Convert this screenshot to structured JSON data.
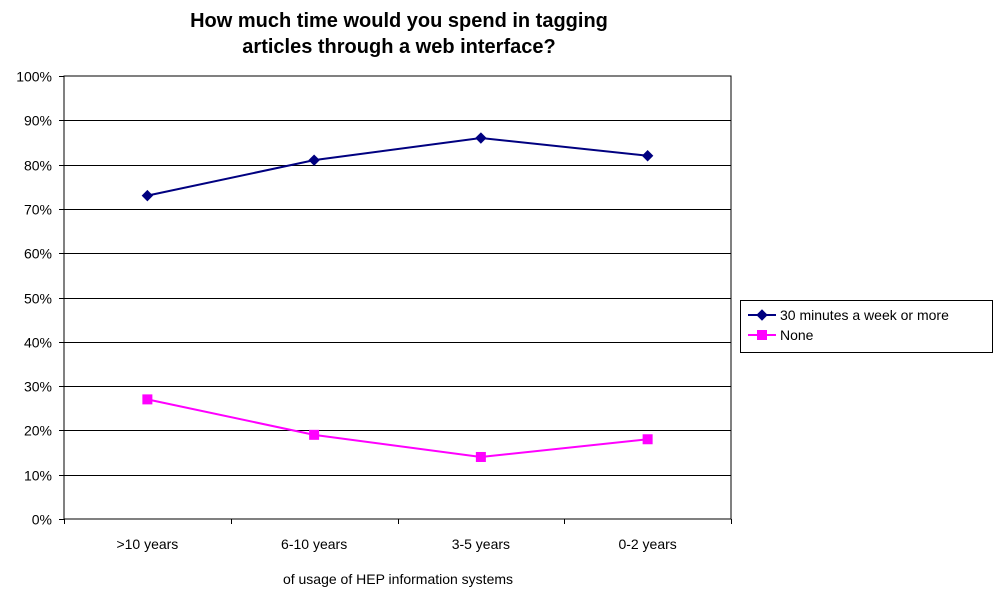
{
  "chart_data": {
    "type": "line",
    "title_lines": [
      "How much time would you spend in tagging",
      "articles through a web interface?"
    ],
    "xlabel": "of usage of HEP information systems",
    "ylabel": "",
    "categories": [
      ">10 years",
      "6-10 years",
      "3-5 years",
      "0-2 years"
    ],
    "ylim": [
      0,
      100
    ],
    "y_ticks": [
      "0%",
      "10%",
      "20%",
      "30%",
      "40%",
      "50%",
      "60%",
      "70%",
      "80%",
      "90%",
      "100%"
    ],
    "grid": true,
    "legend_position": "right",
    "series": [
      {
        "name": "30 minutes a week or more",
        "values": [
          73,
          81,
          86,
          82
        ],
        "color": "#000080",
        "marker": "diamond"
      },
      {
        "name": "None",
        "values": [
          27,
          19,
          14,
          18
        ],
        "color": "#ff00ff",
        "marker": "square"
      }
    ]
  }
}
